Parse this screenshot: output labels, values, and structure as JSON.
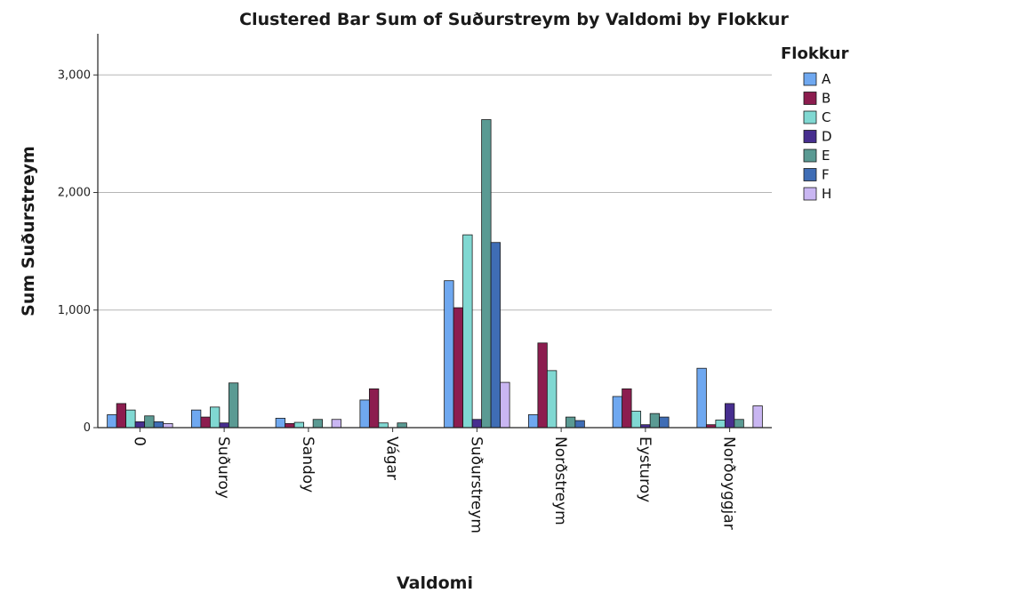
{
  "chart_data": {
    "type": "bar",
    "title": "Clustered Bar Sum of Suðurstreym by Valdomi by Flokkur",
    "xlabel": "Valdomi",
    "ylabel": "Sum Suðurstreym",
    "ylim": [
      0,
      3350
    ],
    "yticks": [
      0,
      1000,
      2000,
      3000
    ],
    "ytick_labels": [
      "0",
      "1,000",
      "2,000",
      "3,000"
    ],
    "grid": true,
    "legend": {
      "title": "Flokkur",
      "position": "right"
    },
    "categories": [
      "0",
      "Suðuroy",
      "Sandoy",
      "Vágar",
      "Suðurstreym",
      "Norðstreym",
      "Eysturoy",
      "Norðoyggjar"
    ],
    "series": [
      {
        "name": "A",
        "color": "#6fa8f0",
        "values": [
          110,
          150,
          80,
          235,
          1250,
          110,
          265,
          505
        ]
      },
      {
        "name": "B",
        "color": "#8c1d4f",
        "values": [
          205,
          90,
          35,
          330,
          1020,
          720,
          330,
          25
        ]
      },
      {
        "name": "C",
        "color": "#80d8d2",
        "values": [
          150,
          175,
          45,
          40,
          1640,
          485,
          140,
          65
        ]
      },
      {
        "name": "D",
        "color": "#472e8f",
        "values": [
          50,
          40,
          0,
          0,
          70,
          0,
          25,
          205
        ]
      },
      {
        "name": "E",
        "color": "#5a9a93",
        "values": [
          100,
          380,
          70,
          40,
          2620,
          90,
          120,
          70
        ]
      },
      {
        "name": "F",
        "color": "#3f6db5",
        "values": [
          50,
          0,
          0,
          0,
          1575,
          60,
          90,
          0
        ]
      },
      {
        "name": "H",
        "color": "#c9b6f2",
        "values": [
          35,
          0,
          70,
          0,
          385,
          0,
          0,
          185
        ]
      }
    ]
  }
}
